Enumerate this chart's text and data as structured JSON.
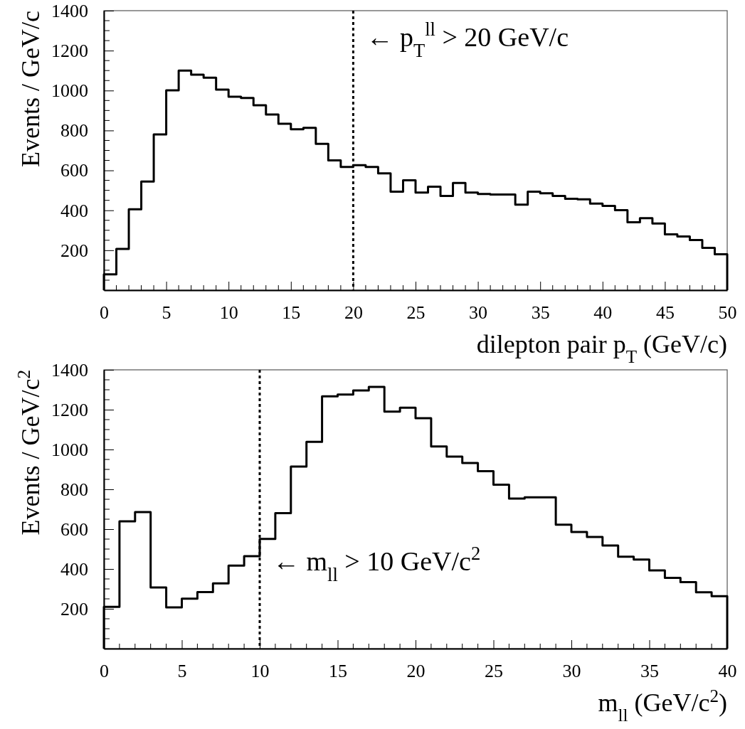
{
  "chart_data": [
    {
      "type": "histogram",
      "xlabel": "dilepton pair p$_{T}$ (GeV/c)",
      "ylabel": "Events / GeV/c",
      "bins": [
        0,
        1,
        2,
        3,
        4,
        5,
        6,
        7,
        8,
        9,
        10,
        11,
        12,
        13,
        14,
        15,
        16,
        17,
        18,
        19,
        20,
        21,
        22,
        23,
        24,
        25,
        26,
        27,
        28,
        29,
        30,
        31,
        32,
        33,
        34,
        35,
        36,
        37,
        38,
        39,
        40,
        41,
        42,
        43,
        44,
        45,
        46,
        47,
        48,
        49,
        50
      ],
      "values": [
        79,
        207,
        405,
        544,
        780,
        1001,
        1100,
        1079,
        1064,
        1005,
        969,
        963,
        926,
        880,
        834,
        806,
        813,
        733,
        650,
        617,
        626,
        617,
        585,
        493,
        550,
        489,
        518,
        472,
        537,
        489,
        482,
        479,
        479,
        428,
        493,
        485,
        472,
        458,
        455,
        434,
        422,
        401,
        340,
        361,
        334,
        280,
        269,
        251,
        212,
        180
      ],
      "color": "#000000",
      "xlim": [
        0,
        50
      ],
      "xticks": [
        0,
        5,
        10,
        15,
        20,
        25,
        30,
        35,
        40,
        45,
        50
      ],
      "ylim": [
        0,
        1400
      ],
      "yticks": [
        200,
        400,
        600,
        800,
        1000,
        1200,
        1400
      ],
      "ref_lines": [
        {
          "axis": "x",
          "value": 20,
          "label": "← p$_{T}$$^{ll}$ > 20 GeV/c",
          "color": "#000000",
          "line_style": "dotted"
        }
      ],
      "grid": false
    },
    {
      "type": "histogram",
      "xlabel": "m$_{ll}$ (GeV/c$^{2}$)",
      "ylabel": "Events / GeV/c$^{2}$",
      "bins": [
        0,
        1,
        2,
        3,
        4,
        5,
        6,
        7,
        8,
        9,
        10,
        11,
        12,
        13,
        14,
        15,
        16,
        17,
        18,
        19,
        20,
        21,
        22,
        23,
        24,
        25,
        26,
        27,
        28,
        29,
        30,
        31,
        32,
        33,
        34,
        35,
        36,
        37,
        38,
        39,
        40
      ],
      "values": [
        210,
        639,
        686,
        307,
        207,
        251,
        284,
        328,
        417,
        464,
        551,
        680,
        914,
        1038,
        1267,
        1276,
        1296,
        1314,
        1190,
        1210,
        1157,
        1015,
        964,
        932,
        891,
        823,
        754,
        760,
        760,
        622,
        586,
        561,
        518,
        462,
        447,
        393,
        355,
        334,
        283,
        263
      ],
      "color": "#000000",
      "xlim": [
        0,
        40
      ],
      "xticks": [
        0,
        5,
        10,
        15,
        20,
        25,
        30,
        35,
        40
      ],
      "ylim": [
        0,
        1400
      ],
      "yticks": [
        200,
        400,
        600,
        800,
        1000,
        1200,
        1400
      ],
      "ref_lines": [
        {
          "axis": "x",
          "value": 10,
          "label": "← m$_{ll}$ > 10 GeV/c$^{2}$",
          "color": "#000000",
          "line_style": "dotted"
        }
      ],
      "grid": false
    }
  ]
}
